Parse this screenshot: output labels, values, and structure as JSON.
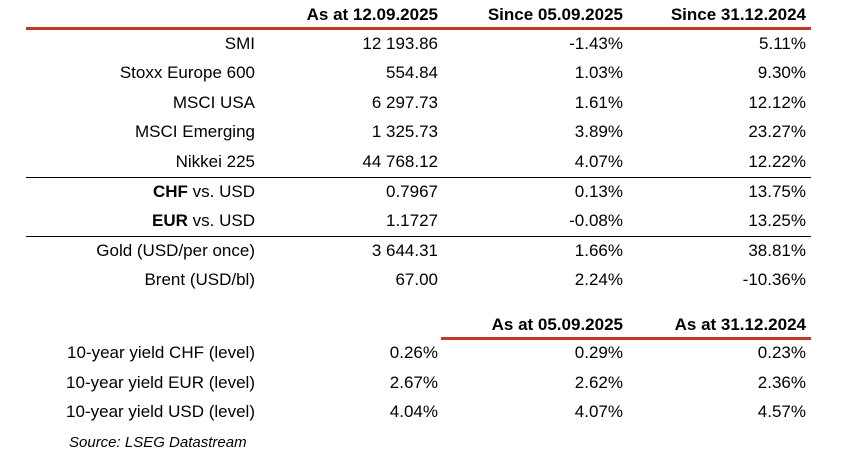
{
  "header": {
    "col1": "As at 12.09.2025",
    "col2": "Since 05.09.2025",
    "col3": "Since 31.12.2024"
  },
  "indices": [
    {
      "label": "SMI",
      "value": "12 193.86",
      "week": "-1.43%",
      "ytd": "5.11%"
    },
    {
      "label": "Stoxx Europe 600",
      "value": "554.84",
      "week": "1.03%",
      "ytd": "9.30%"
    },
    {
      "label": "MSCI USA",
      "value": "6 297.73",
      "week": "1.61%",
      "ytd": "12.12%"
    },
    {
      "label": "MSCI Emerging",
      "value": "1 325.73",
      "week": "3.89%",
      "ytd": "23.27%"
    },
    {
      "label": "Nikkei 225",
      "value": "44 768.12",
      "week": "4.07%",
      "ytd": "12.22%"
    }
  ],
  "currencies": [
    {
      "code": "CHF",
      "suffix": " vs. USD",
      "value": "0.7967",
      "week": "0.13%",
      "ytd": "13.75%"
    },
    {
      "code": "EUR",
      "suffix": " vs. USD",
      "value": "1.1727",
      "week": "-0.08%",
      "ytd": "13.25%"
    }
  ],
  "commodities": [
    {
      "label": "Gold (USD/per once)",
      "value": "3 644.31",
      "week": "1.66%",
      "ytd": "38.81%"
    },
    {
      "label": "Brent (USD/bl)",
      "value": "67.00",
      "week": "2.24%",
      "ytd": "-10.36%"
    }
  ],
  "yields_header": {
    "col2": "As at 05.09.2025",
    "col3": "As at 31.12.2024"
  },
  "yields": [
    {
      "label": "10-year yield CHF (level)",
      "value": "0.26%",
      "week": "0.29%",
      "ytd": "0.23%"
    },
    {
      "label": "10-year yield EUR (level)",
      "value": "2.67%",
      "week": "2.62%",
      "ytd": "2.36%"
    },
    {
      "label": "10-year yield USD (level)",
      "value": "4.04%",
      "week": "4.07%",
      "ytd": "4.57%"
    }
  ],
  "source": "Source: LSEG Datastream",
  "colors": {
    "rule": "#c0392b",
    "text": "#000000"
  }
}
